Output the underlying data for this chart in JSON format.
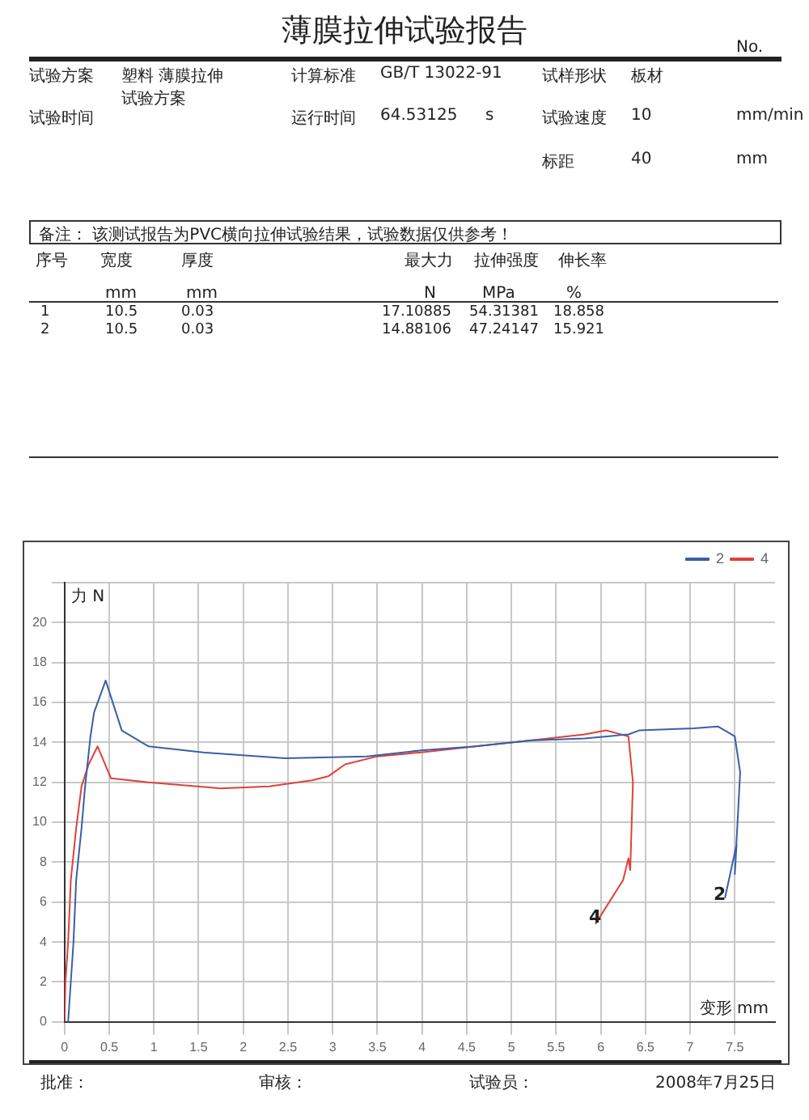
{
  "chart_data": {
    "type": "line",
    "title": "薄膜拉伸试验报告",
    "xlabel": "变形 mm",
    "ylabel": "力 N",
    "xlim": [
      0,
      7.95
    ],
    "xticks": [
      0,
      0.5,
      1,
      1.5,
      2,
      2.5,
      3,
      3.5,
      4,
      4.5,
      5,
      5.5,
      6,
      6.5,
      7,
      7.5
    ],
    "ylim": [
      0,
      22
    ],
    "yticks": [
      0,
      2,
      4,
      6,
      8,
      10,
      12,
      14,
      16,
      18,
      20,
      {
        "value": 22,
        "label": null
      }
    ],
    "grid": true,
    "legend": "top right",
    "marker": "none",
    "line_style": "solid",
    "series": [
      {
        "name": "2",
        "color": "#3a5fa8",
        "x": [
          0.04,
          0.07,
          0.1,
          0.13,
          0.19,
          0.23,
          0.29,
          0.33,
          0.46,
          0.64,
          0.94,
          1.55,
          2.47,
          3.38,
          3.99,
          4.6,
          5.21,
          5.82,
          6.31,
          6.43,
          7.04,
          7.31,
          7.5,
          7.56,
          7.5,
          7.52,
          7.39
        ],
        "values": [
          0,
          2,
          4,
          7.1,
          9.7,
          11.8,
          14.3,
          15.5,
          17.1,
          14.6,
          13.8,
          13.5,
          13.2,
          13.3,
          13.6,
          13.8,
          14.1,
          14.2,
          14.4,
          14.6,
          14.7,
          14.8,
          14.3,
          12.5,
          7.4,
          8.9,
          6.2
        ]
      },
      {
        "name": "4",
        "color": "#e0403a",
        "x": [
          0,
          0.01,
          0.04,
          0.07,
          0.13,
          0.19,
          0.27,
          0.37,
          0.52,
          0.94,
          1.74,
          2.29,
          2.77,
          2.95,
          3.14,
          3.5,
          3.99,
          4.6,
          5.21,
          5.82,
          6.06,
          6.31,
          6.36,
          6.33,
          6.31,
          6.25,
          5.94
        ],
        "values": [
          0,
          2,
          4,
          7.1,
          9.7,
          11.8,
          12.9,
          13.8,
          12.2,
          12,
          11.7,
          11.8,
          12.1,
          12.3,
          12.9,
          13.3,
          13.5,
          13.8,
          14.1,
          14.4,
          14.6,
          14.3,
          12,
          7.6,
          8.2,
          7.1,
          4.9
        ]
      }
    ],
    "annotations": [
      "No.",
      "试验方案",
      "塑料 薄膜拉伸试验方案",
      "计算标准",
      "GB/T 13022-91",
      "试样形状",
      "板材",
      "试验时间",
      "运行时间",
      "64.53125",
      "s",
      "试验速度",
      "10",
      "mm/min",
      "标距",
      "40",
      "mm",
      "备注： 该测试报告为PVC横向拉伸试验结果，试验数据仅供参考！",
      "序号",
      "宽度",
      "厚度",
      "最大力",
      "拉伸强度",
      "伸长率",
      "mm",
      "mm",
      "N",
      "MPa",
      "%",
      "1",
      "10.5",
      "0.03",
      "17.10885",
      "54.31381",
      "18.858",
      "2",
      "10.5",
      "0.03",
      "14.88106",
      "47.24147",
      "15.921",
      "批准：",
      "审核：",
      "试验员：",
      "2008年7月25日",
      "4",
      "2"
    ]
  }
}
